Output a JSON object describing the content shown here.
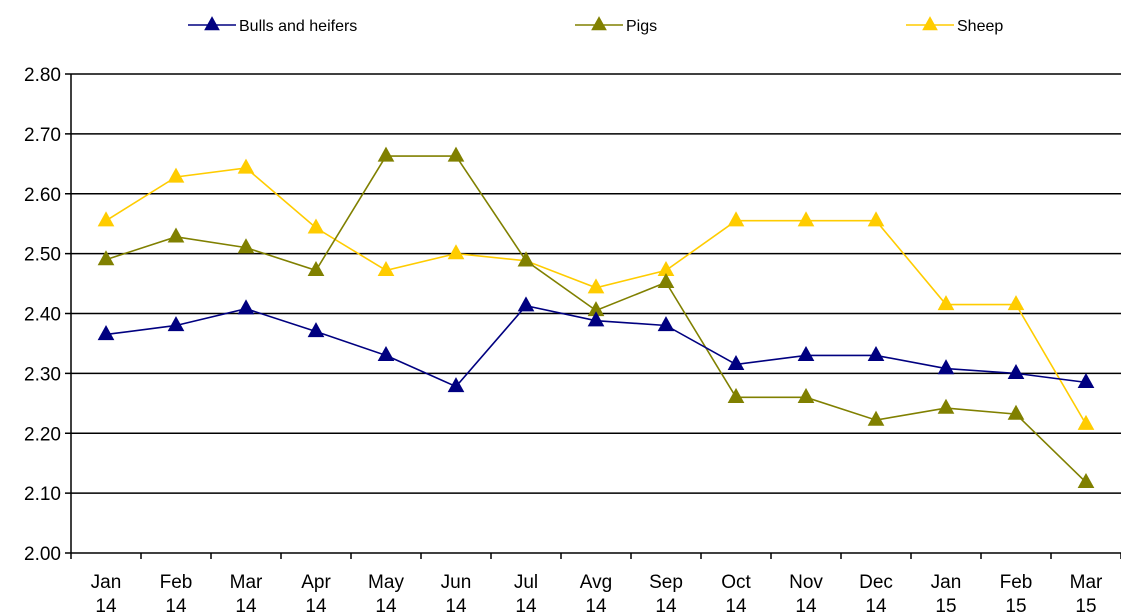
{
  "chart_data": {
    "type": "line",
    "categories": [
      "Jan 14",
      "Feb 14",
      "Mar 14",
      "Apr 14",
      "May 14",
      "Jun 14",
      "Jul 14",
      "Avg 14",
      "Sep 14",
      "Oct 14",
      "Nov 14",
      "Dec 14",
      "Jan 15",
      "Feb 15",
      "Mar 15"
    ],
    "category_lines": [
      [
        "Jan",
        "14"
      ],
      [
        "Feb",
        "14"
      ],
      [
        "Mar",
        "14"
      ],
      [
        "Apr",
        "14"
      ],
      [
        "May",
        "14"
      ],
      [
        "Jun",
        "14"
      ],
      [
        "Jul",
        "14"
      ],
      [
        "Avg",
        "14"
      ],
      [
        "Sep",
        "14"
      ],
      [
        "Oct",
        "14"
      ],
      [
        "Nov",
        "14"
      ],
      [
        "Dec",
        "14"
      ],
      [
        "Jan",
        "15"
      ],
      [
        "Feb",
        "15"
      ],
      [
        "Mar",
        "15"
      ]
    ],
    "series": [
      {
        "name": "Bulls and heifers",
        "color": "#000080",
        "values": [
          2.365,
          2.38,
          2.408,
          2.37,
          2.33,
          2.278,
          2.413,
          2.388,
          2.38,
          2.315,
          2.33,
          2.33,
          2.308,
          2.3,
          2.285
        ]
      },
      {
        "name": "Pigs",
        "color": "#808000",
        "values": [
          2.49,
          2.528,
          2.51,
          2.472,
          2.663,
          2.663,
          2.488,
          2.405,
          2.452,
          2.26,
          2.26,
          2.222,
          2.242,
          2.232,
          2.118
        ]
      },
      {
        "name": "Sheep",
        "color": "#FFCC00",
        "values": [
          2.555,
          2.628,
          2.643,
          2.543,
          2.472,
          2.5,
          2.488,
          2.443,
          2.472,
          2.555,
          2.555,
          2.555,
          2.415,
          2.415,
          2.215
        ]
      }
    ],
    "yticks": [
      "2.00",
      "2.10",
      "2.20",
      "2.30",
      "2.40",
      "2.50",
      "2.60",
      "2.70",
      "2.80"
    ],
    "ylim": [
      2.0,
      2.8
    ],
    "grid": true,
    "marker": "triangle",
    "legend_position": "top"
  }
}
